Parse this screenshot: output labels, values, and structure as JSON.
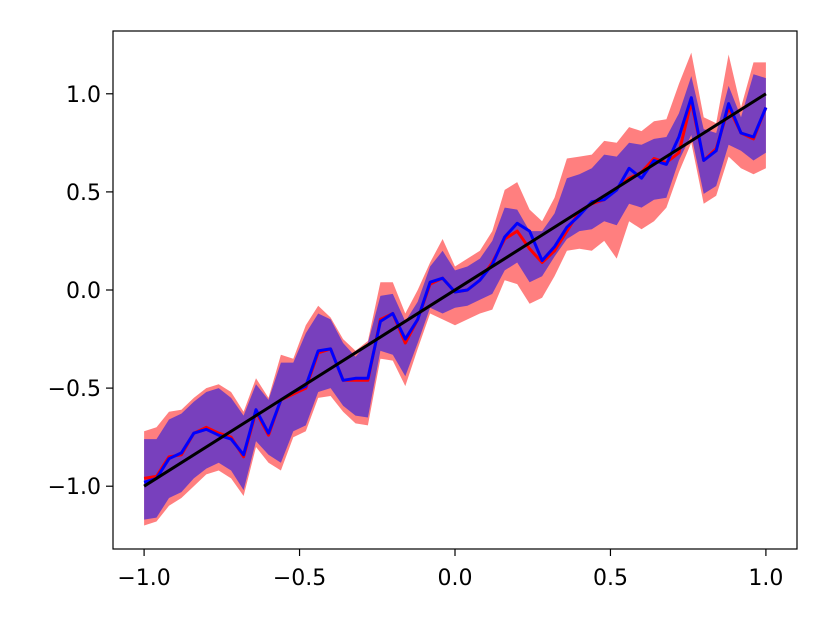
{
  "chart_data": {
    "type": "line",
    "title": "",
    "xlabel": "",
    "ylabel": "",
    "xlim": [
      -1.1,
      1.1
    ],
    "ylim": [
      -1.32,
      1.32
    ],
    "grid": false,
    "x_ticks": [
      {
        "value": -1.0,
        "label": "−1.0"
      },
      {
        "value": -0.5,
        "label": "−0.5"
      },
      {
        "value": 0.0,
        "label": "0.0"
      },
      {
        "value": 0.5,
        "label": "0.5"
      },
      {
        "value": 1.0,
        "label": "1.0"
      }
    ],
    "y_ticks": [
      {
        "value": -1.0,
        "label": "−1.0"
      },
      {
        "value": -0.5,
        "label": "−0.5"
      },
      {
        "value": 0.0,
        "label": "0.0"
      },
      {
        "value": 0.5,
        "label": "0.5"
      },
      {
        "value": 1.0,
        "label": "1.0"
      }
    ],
    "x": [
      -1.0,
      -0.96,
      -0.92,
      -0.88,
      -0.84,
      -0.8,
      -0.76,
      -0.72,
      -0.68,
      -0.64,
      -0.6,
      -0.56,
      -0.52,
      -0.48,
      -0.44,
      -0.4,
      -0.36,
      -0.32,
      -0.28,
      -0.24,
      -0.2,
      -0.16,
      -0.12,
      -0.08,
      -0.04,
      0.0,
      0.04,
      0.08,
      0.12,
      0.16,
      0.2,
      0.24,
      0.28,
      0.32,
      0.36,
      0.4,
      0.44,
      0.48,
      0.52,
      0.56,
      0.6,
      0.64,
      0.68,
      0.72,
      0.76,
      0.8,
      0.84,
      0.88,
      0.92,
      0.96,
      1.0
    ],
    "bands": [
      {
        "color": "#ff0000",
        "opacity": 0.5,
        "lower": [
          -1.2,
          -1.18,
          -1.1,
          -1.06,
          -1.0,
          -0.94,
          -0.92,
          -0.96,
          -1.05,
          -0.8,
          -0.88,
          -0.92,
          -0.75,
          -0.72,
          -0.55,
          -0.54,
          -0.62,
          -0.68,
          -0.69,
          -0.35,
          -0.36,
          -0.49,
          -0.3,
          -0.12,
          -0.15,
          -0.18,
          -0.15,
          -0.12,
          -0.1,
          0.05,
          0.03,
          -0.07,
          -0.04,
          0.07,
          0.2,
          0.21,
          0.2,
          0.25,
          0.16,
          0.35,
          0.31,
          0.35,
          0.42,
          0.6,
          0.75,
          0.44,
          0.48,
          0.68,
          0.62,
          0.59,
          0.62
        ],
        "upper": [
          -0.72,
          -0.7,
          -0.62,
          -0.61,
          -0.55,
          -0.5,
          -0.48,
          -0.52,
          -0.62,
          -0.45,
          -0.55,
          -0.33,
          -0.35,
          -0.18,
          -0.08,
          -0.14,
          -0.25,
          -0.31,
          -0.26,
          0.04,
          0.04,
          -0.12,
          0.0,
          0.14,
          0.26,
          0.12,
          0.16,
          0.2,
          0.3,
          0.51,
          0.55,
          0.41,
          0.35,
          0.47,
          0.67,
          0.68,
          0.69,
          0.76,
          0.75,
          0.83,
          0.81,
          0.86,
          0.87,
          1.05,
          1.21,
          0.88,
          0.85,
          1.2,
          0.93,
          1.16,
          1.16
        ]
      },
      {
        "color": "#4b2bd1",
        "opacity": 0.75,
        "lower": [
          -1.17,
          -1.16,
          -1.06,
          -1.03,
          -0.96,
          -0.91,
          -0.88,
          -0.92,
          -1.02,
          -0.77,
          -0.84,
          -0.88,
          -0.72,
          -0.69,
          -0.52,
          -0.5,
          -0.59,
          -0.64,
          -0.65,
          -0.31,
          -0.33,
          -0.44,
          -0.27,
          -0.09,
          -0.12,
          -0.09,
          -0.08,
          -0.05,
          -0.02,
          0.1,
          0.14,
          0.04,
          0.07,
          0.17,
          0.26,
          0.3,
          0.31,
          0.35,
          0.33,
          0.44,
          0.42,
          0.46,
          0.47,
          0.66,
          0.79,
          0.49,
          0.53,
          0.74,
          0.71,
          0.66,
          0.7
        ],
        "upper": [
          -0.76,
          -0.76,
          -0.66,
          -0.63,
          -0.57,
          -0.52,
          -0.5,
          -0.55,
          -0.64,
          -0.48,
          -0.56,
          -0.37,
          -0.37,
          -0.22,
          -0.12,
          -0.15,
          -0.27,
          -0.34,
          -0.27,
          -0.03,
          -0.02,
          -0.16,
          -0.06,
          0.12,
          0.2,
          0.1,
          0.12,
          0.16,
          0.25,
          0.42,
          0.41,
          0.3,
          0.3,
          0.39,
          0.57,
          0.59,
          0.62,
          0.69,
          0.68,
          0.75,
          0.74,
          0.77,
          0.78,
          0.9,
          1.09,
          0.82,
          0.8,
          1.04,
          0.88,
          1.1,
          1.08
        ]
      }
    ],
    "series": [
      {
        "color": "#ff0000",
        "width": 3,
        "values": [
          -0.96,
          -0.95,
          -0.85,
          -0.84,
          -0.73,
          -0.7,
          -0.73,
          -0.75,
          -0.85,
          -0.62,
          -0.74,
          -0.56,
          -0.53,
          -0.5,
          -0.32,
          -0.3,
          -0.46,
          -0.46,
          -0.46,
          -0.15,
          -0.12,
          -0.27,
          -0.15,
          0.03,
          0.06,
          -0.01,
          0.0,
          0.05,
          0.14,
          0.26,
          0.3,
          0.21,
          0.14,
          0.2,
          0.3,
          0.4,
          0.44,
          0.46,
          0.52,
          0.57,
          0.6,
          0.67,
          0.65,
          0.7,
          0.96,
          0.66,
          0.72,
          0.93,
          0.8,
          0.77,
          0.93
        ]
      },
      {
        "color": "#0000ff",
        "width": 3,
        "values": [
          -0.98,
          -0.96,
          -0.86,
          -0.83,
          -0.73,
          -0.71,
          -0.74,
          -0.76,
          -0.84,
          -0.61,
          -0.73,
          -0.56,
          -0.52,
          -0.49,
          -0.31,
          -0.3,
          -0.46,
          -0.45,
          -0.45,
          -0.16,
          -0.12,
          -0.25,
          -0.15,
          0.04,
          0.06,
          -0.01,
          0.0,
          0.05,
          0.13,
          0.27,
          0.34,
          0.3,
          0.15,
          0.22,
          0.32,
          0.38,
          0.45,
          0.46,
          0.51,
          0.62,
          0.57,
          0.66,
          0.64,
          0.78,
          0.98,
          0.66,
          0.71,
          0.95,
          0.8,
          0.78,
          0.93
        ]
      },
      {
        "color": "#000000",
        "width": 3,
        "values": [
          -1.0,
          1.0
        ],
        "x": [
          -1.0,
          1.0
        ]
      }
    ]
  }
}
